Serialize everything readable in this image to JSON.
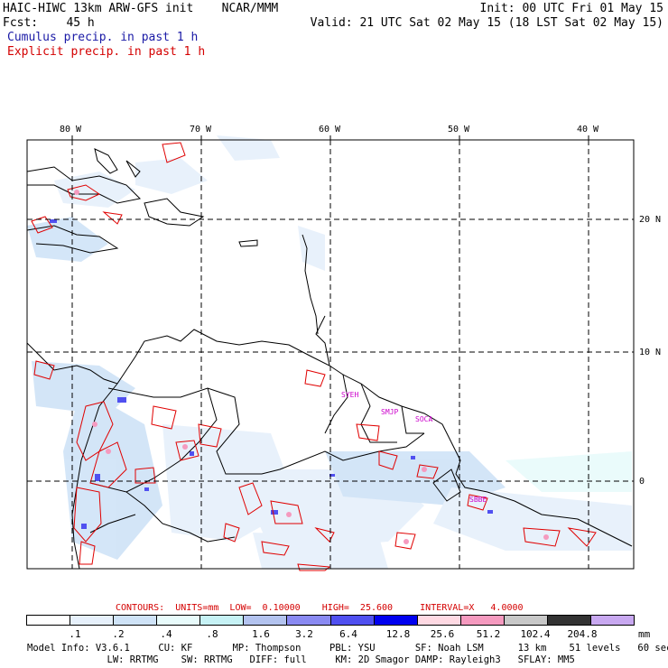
{
  "header": {
    "title": "HAIC-HIWC 13km ARW-GFS init    NCAR/MMM",
    "init": "Init: 00 UTC Fri 01 May 15",
    "fcst": "Fcst:    45 h",
    "valid": "Valid: 21 UTC Sat 02 May 15 (18 LST Sat 02 May 15)",
    "cumulus_label": "Cumulus precip. in past 1 h",
    "explicit_label": "Explicit precip. in past 1 h"
  },
  "map": {
    "lon_labels": [
      "80 W",
      "70 W",
      "60 W",
      "50 W",
      "40 W"
    ],
    "lat_labels": [
      "20 N",
      "10 N",
      "0"
    ],
    "place_labels": [
      "SYEH",
      "SMJP",
      "SOCA",
      "SBBE"
    ],
    "colors": {
      "cumulus": "#1a1aa6",
      "explicit": "#e00000",
      "place_label": "#cc00cc",
      "grid": "#000000"
    }
  },
  "contour_info": {
    "text": "CONTOURS:  UNITS=mm  LOW=  0.10000    HIGH=  25.600     INTERVAL=X   4.0000"
  },
  "colorbar": {
    "ticks": [
      ".1",
      ".2",
      ".4",
      ".8",
      "1.6",
      "3.2",
      "6.4",
      "12.8",
      "25.6",
      "51.2",
      "102.4",
      "204.8"
    ],
    "unit": "mm",
    "colors": [
      "#ffffff",
      "#e6f0fb",
      "#cfe3f7",
      "#e8fbfb",
      "#c6f2f5",
      "#b3c3ef",
      "#8a8af2",
      "#5050f0",
      "#0000f0",
      "#ffd9e3",
      "#f59abf",
      "#c8c8c8",
      "#333333",
      "#c8a8f0"
    ]
  },
  "model_info": {
    "line1": "Model Info: V3.6.1     CU: KF       MP: Thompson     PBL: YSU       SF: Noah LSM      13 km    51 levels   60 sec",
    "line2": "              LW: RRTMG    SW: RRTMG   DIFF: full     KM: 2D Smagor DAMP: Rayleigh3   SFLAY: MM5"
  }
}
